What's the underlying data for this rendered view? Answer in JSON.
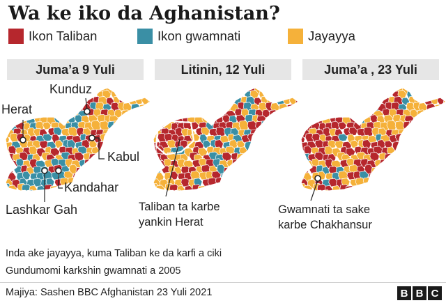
{
  "title": "Wa ke iko da Aghanistan?",
  "legend": [
    {
      "label": "Ikon Taliban",
      "color": "#b6272d"
    },
    {
      "label": "Ikon gwamnati",
      "color": "#3a8fa5"
    },
    {
      "label": "Jayayya",
      "color": "#f5b13a"
    }
  ],
  "panels": [
    {
      "header": "Juma’a 9 Yuli",
      "share": {
        "taliban": 0.34,
        "gov": 0.22,
        "contested": 0.44
      }
    },
    {
      "header": "Litinin, 12 Yuli",
      "share": {
        "taliban": 0.44,
        "gov": 0.14,
        "contested": 0.42
      }
    },
    {
      "header": "Juma’a , 23 Yuli",
      "share": {
        "taliban": 0.49,
        "gov": 0.11,
        "contested": 0.4
      }
    }
  ],
  "cities": {
    "herat": "Herat",
    "kunduz": "Kunduz",
    "kabul": "Kabul",
    "kandahar": "Kandahar",
    "lashkar_gah": "Lashkar Gah"
  },
  "annotations": {
    "herat_line1": "Taliban ta karbe",
    "herat_line2": "yankin Herat",
    "chakhansur_line1": "Gwamnati ta sake",
    "chakhansur_line2": "karbe Chakhansur"
  },
  "notes": {
    "line1": "Inda ake jayayya, kuma Taliban ke da karfi a ciki",
    "line2": "Gundumomi karkshin gwamnati a 2005"
  },
  "source": "Majiya: Sashen BBC Afghanistan 23 Yuli 2021",
  "brand": [
    "B",
    "B",
    "C"
  ]
}
